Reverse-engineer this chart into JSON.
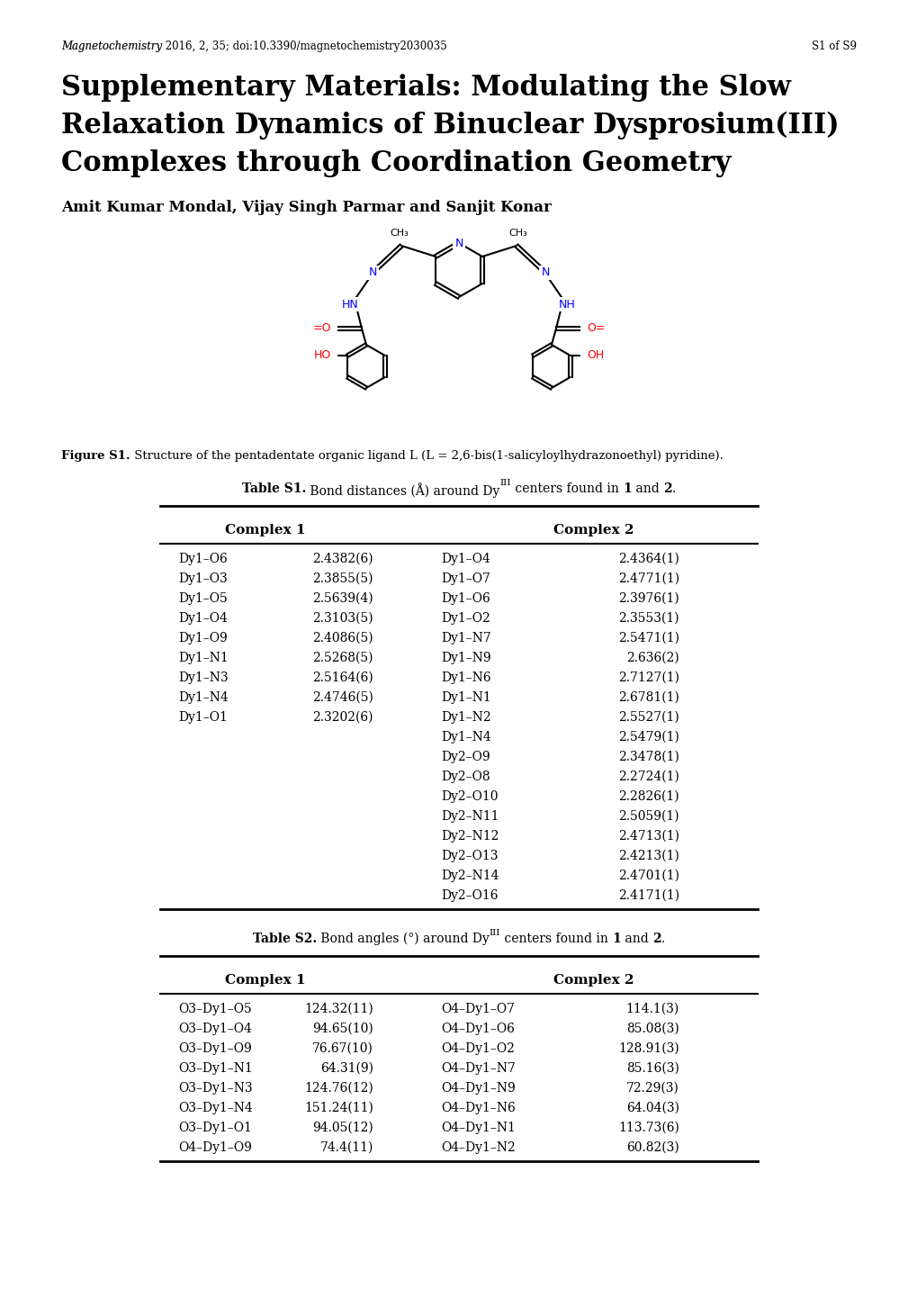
{
  "header_italic": "Magnetochemistry",
  "header_normal": " 2016, 2, 35; doi:10.3390/magnetochemistry2030035",
  "header_right": "S1 of S9",
  "title_line1": "Supplementary Materials: Modulating the Slow",
  "title_line2": "Relaxation Dynamics of Binuclear Dysprosium(III)",
  "title_line3": "Complexes through Coordination Geometry",
  "authors": "Amit Kumar Mondal, Vijay Singh Parmar and Sanjit Konar",
  "fig_caption_bold": "Figure S1.",
  "fig_caption_rest": " Structure of the pentadentate organic ligand L (L = 2,6-bis(1-salicyloylhydrazonoethyl) pyridine).",
  "table1_col1_header": "Complex 1",
  "table1_col2_header": "Complex 2",
  "table1_c1_bonds": [
    "Dy1–O6",
    "Dy1–O3",
    "Dy1–O5",
    "Dy1–O4",
    "Dy1–O9",
    "Dy1–N1",
    "Dy1–N3",
    "Dy1–N4",
    "Dy1–O1"
  ],
  "table1_c1_vals": [
    "2.4382(6)",
    "2.3855(5)",
    "2.5639(4)",
    "2.3103(5)",
    "2.4086(5)",
    "2.5268(5)",
    "2.5164(6)",
    "2.4746(5)",
    "2.3202(6)"
  ],
  "table1_c2_bonds": [
    "Dy1–O4",
    "Dy1–O7",
    "Dy1–O6",
    "Dy1–O2",
    "Dy1–N7",
    "Dy1–N9",
    "Dy1–N6",
    "Dy1–N1",
    "Dy1–N2",
    "Dy1–N4",
    "Dy2–O9",
    "Dy2–O8",
    "Dy2–O10",
    "Dy2–N11",
    "Dy2–N12",
    "Dy2–O13",
    "Dy2–N14",
    "Dy2–O16"
  ],
  "table1_c2_vals": [
    "2.4364(1)",
    "2.4771(1)",
    "2.3976(1)",
    "2.3553(1)",
    "2.5471(1)",
    "2.636(2)",
    "2.7127(1)",
    "2.6781(1)",
    "2.5527(1)",
    "2.5479(1)",
    "2.3478(1)",
    "2.2724(1)",
    "2.2826(1)",
    "2.5059(1)",
    "2.4713(1)",
    "2.4213(1)",
    "2.4701(1)",
    "2.4171(1)"
  ],
  "table2_col1_header": "Complex 1",
  "table2_col2_header": "Complex 2",
  "table2_c1_bonds": [
    "O3–Dy1–O5",
    "O3–Dy1–O4",
    "O3–Dy1–O9",
    "O3–Dy1–N1",
    "O3–Dy1–N3",
    "O3–Dy1–N4",
    "O3–Dy1–O1",
    "O4–Dy1–O9"
  ],
  "table2_c1_vals": [
    "124.32(11)",
    "94.65(10)",
    "76.67(10)",
    "64.31(9)",
    "124.76(12)",
    "151.24(11)",
    "94.05(12)",
    "74.4(11)"
  ],
  "table2_c2_bonds": [
    "O4–Dy1–O7",
    "O4–Dy1–O6",
    "O4–Dy1–O2",
    "O4–Dy1–N7",
    "O4–Dy1–N9",
    "O4–Dy1–N6",
    "O4–Dy1–N1",
    "O4–Dy1–N2"
  ],
  "table2_c2_vals": [
    "114.1(3)",
    "85.08(3)",
    "128.91(3)",
    "85.16(3)",
    "72.29(3)",
    "64.04(3)",
    "113.73(6)",
    "60.82(3)"
  ]
}
